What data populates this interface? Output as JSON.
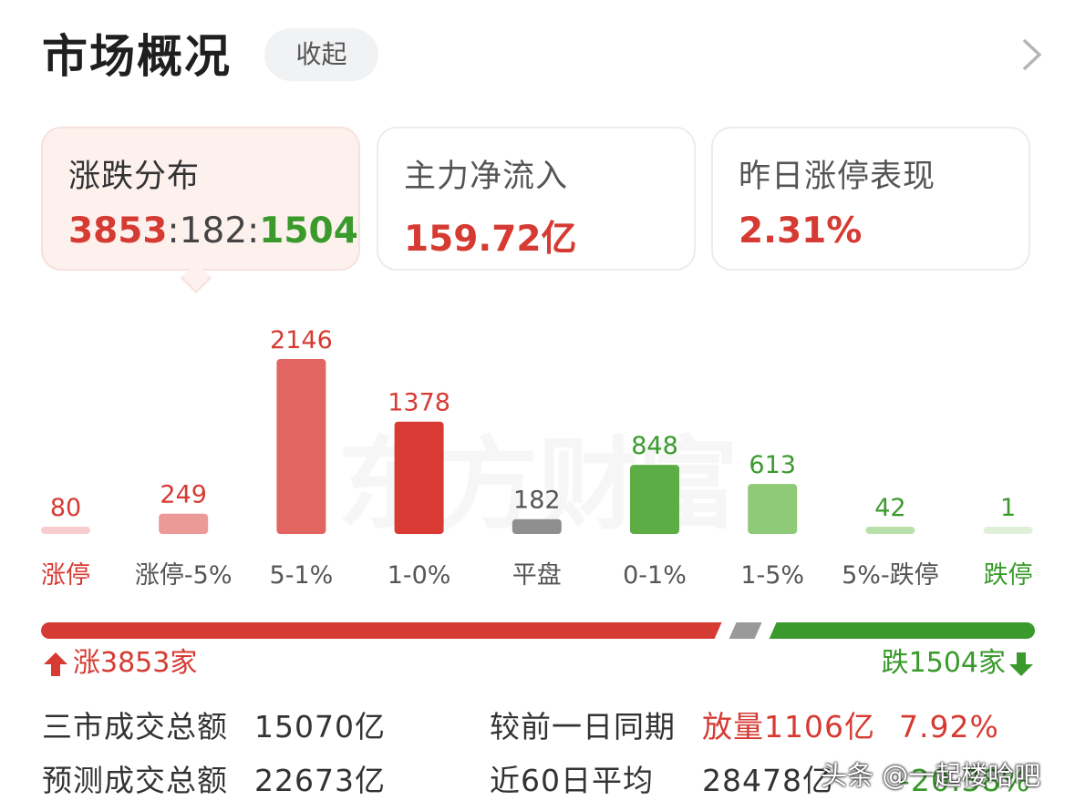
{
  "header": {
    "title": "市场概况",
    "collapse_label": "收起"
  },
  "cards": [
    {
      "title": "涨跌分布",
      "up": "3853",
      "sep1": ":",
      "flat": "182",
      "sep2": ":",
      "down": "1504"
    },
    {
      "title": "主力净流入",
      "value": "159.72亿"
    },
    {
      "title": "昨日涨停表现",
      "value": "2.31%"
    }
  ],
  "colors": {
    "red": "#d63b33",
    "green": "#3a9a2c",
    "grey": "#9a9a9a"
  },
  "chart_data": {
    "type": "bar",
    "categories": [
      "涨停",
      "涨停-5%",
      "5-1%",
      "1-0%",
      "平盘",
      "0-1%",
      "1-5%",
      "5%-跌停",
      "跌停"
    ],
    "values": [
      80,
      249,
      2146,
      1378,
      182,
      848,
      613,
      42,
      1
    ],
    "value_labels": [
      "80",
      "249",
      "2146",
      "1378",
      "182",
      "848",
      "613",
      "42",
      "1"
    ],
    "colors": [
      "#f6cccc",
      "#eb9a98",
      "#e26562",
      "#d93a33",
      "#8f8f8f",
      "#5cad46",
      "#8fca78",
      "#b9e0ab",
      "#dff0d8"
    ],
    "label_colors": [
      "#d63b33",
      "#555555",
      "#555555",
      "#555555",
      "#555555",
      "#555555",
      "#555555",
      "#555555",
      "#3a9a2c"
    ],
    "value_colors": [
      "#d63b33",
      "#d63b33",
      "#d63b33",
      "#d63b33",
      "#555555",
      "#3a9a2c",
      "#3a9a2c",
      "#3a9a2c",
      "#3a9a2c"
    ],
    "title": "",
    "xlabel": "",
    "ylabel": ""
  },
  "breadth": {
    "up": 3853,
    "flat": 182,
    "down": 1504,
    "up_label": "涨3853家",
    "down_label": "跌1504家"
  },
  "summary": {
    "row1_label": "三市成交总额",
    "row1_value": "15070亿",
    "row1_compare_label": "较前一日同期",
    "row1_compare_value": "放量1106亿",
    "row1_compare_pct": "7.92%",
    "row2_label": "预测成交总额",
    "row2_value": "22673亿",
    "row2_compare_label": "近60日平均",
    "row2_compare_value": "28478亿",
    "row2_compare_pct": "-20.38%"
  },
  "watermark": {
    "chart_text": "东方财富",
    "footer_text": "头条 @一起楼哈吧"
  }
}
